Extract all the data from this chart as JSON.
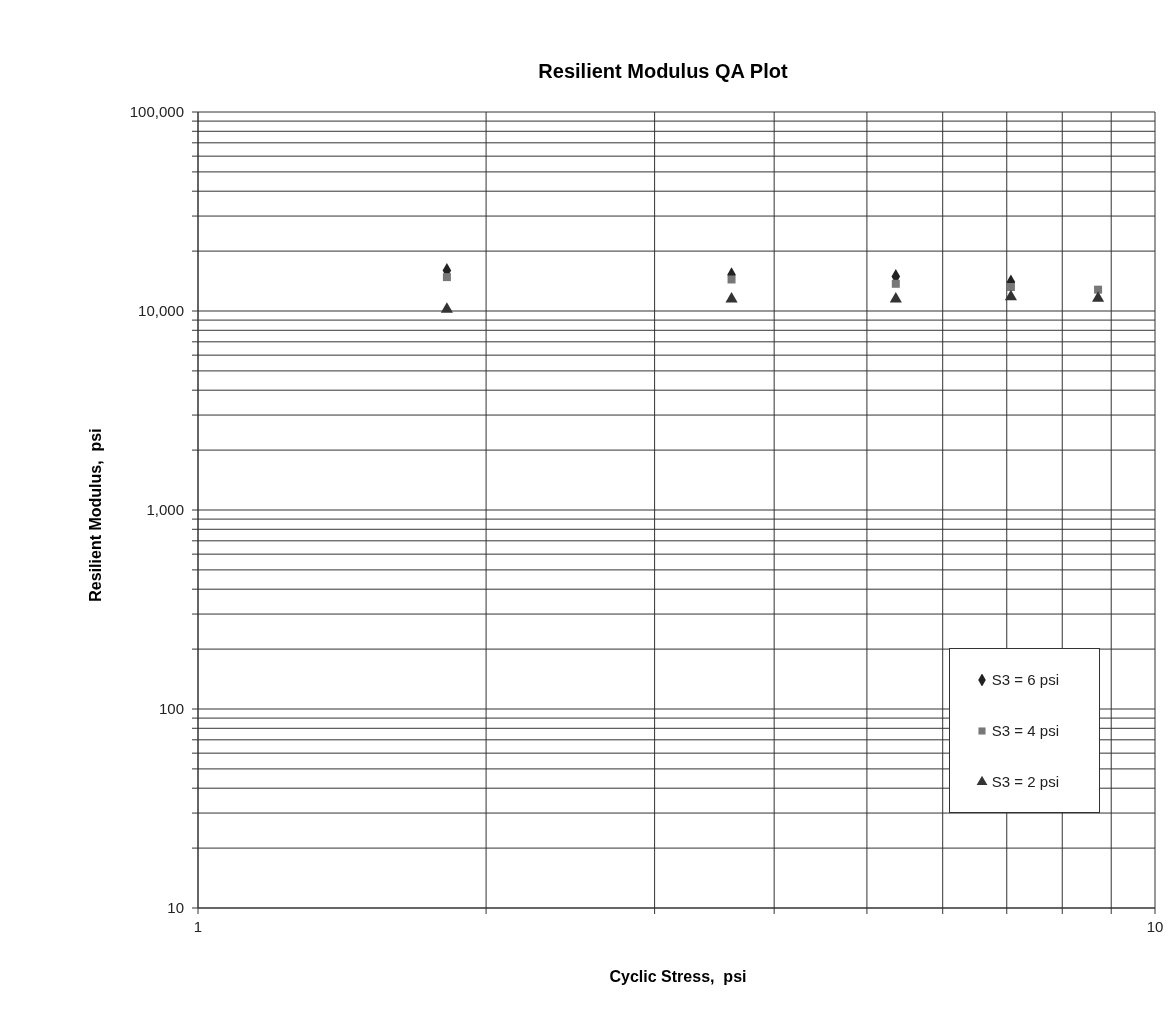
{
  "chart_data": {
    "type": "scatter",
    "title": "Resilient Modulus QA Plot",
    "xlabel": "Cyclic Stress,  psi",
    "ylabel": "Resilient Modulus,  psi",
    "x": [
      1.82,
      3.61,
      5.36,
      7.07,
      8.72
    ],
    "series": [
      {
        "name": "S3  = 6 psi",
        "color": "#222222",
        "marker": "diamond",
        "values": [
          16000,
          15200,
          14900,
          14000,
          null
        ]
      },
      {
        "name": "S3  = 4 psi",
        "color": "#777777",
        "marker": "square",
        "values": [
          14800,
          14400,
          13700,
          13200,
          12800
        ]
      },
      {
        "name": "S3  = 2 psi",
        "color": "#333333",
        "marker": "triangle",
        "values": [
          10200,
          11500,
          11500,
          11800,
          11600
        ]
      }
    ],
    "log": "xy",
    "xlim": [
      1,
      10
    ],
    "ylim": [
      10,
      100000
    ],
    "xticks": [
      1,
      {
        "value": 2,
        "label": null
      },
      {
        "value": 3,
        "label": null
      },
      {
        "value": 4,
        "label": null
      },
      {
        "value": 5,
        "label": null
      },
      {
        "value": 6,
        "label": null
      },
      {
        "value": 7,
        "label": null
      },
      {
        "value": 8,
        "label": null
      },
      {
        "value": 9,
        "label": null
      },
      10
    ],
    "yticks": [
      10,
      {
        "value": 20,
        "label": null
      },
      {
        "value": 30,
        "label": null
      },
      {
        "value": 40,
        "label": null
      },
      {
        "value": 50,
        "label": null
      },
      {
        "value": 60,
        "label": null
      },
      {
        "value": 70,
        "label": null
      },
      {
        "value": 80,
        "label": null
      },
      {
        "value": 90,
        "label": null
      },
      100,
      {
        "value": 200,
        "label": null
      },
      {
        "value": 300,
        "label": null
      },
      {
        "value": 400,
        "label": null
      },
      {
        "value": 500,
        "label": null
      },
      {
        "value": 600,
        "label": null
      },
      {
        "value": 700,
        "label": null
      },
      {
        "value": 800,
        "label": null
      },
      {
        "value": 900,
        "label": null
      },
      {
        "value": 1000,
        "label": "1,000"
      },
      {
        "value": 2000,
        "label": null
      },
      {
        "value": 3000,
        "label": null
      },
      {
        "value": 4000,
        "label": null
      },
      {
        "value": 5000,
        "label": null
      },
      {
        "value": 6000,
        "label": null
      },
      {
        "value": 7000,
        "label": null
      },
      {
        "value": 8000,
        "label": null
      },
      {
        "value": 9000,
        "label": null
      },
      {
        "value": 10000,
        "label": "10,000"
      },
      {
        "value": 20000,
        "label": null
      },
      {
        "value": 30000,
        "label": null
      },
      {
        "value": 40000,
        "label": null
      },
      {
        "value": 50000,
        "label": null
      },
      {
        "value": 60000,
        "label": null
      },
      {
        "value": 70000,
        "label": null
      },
      {
        "value": 80000,
        "label": null
      },
      {
        "value": 90000,
        "label": null
      },
      {
        "value": 100000,
        "label": "100,000"
      }
    ],
    "grid": true,
    "legend": "bottom right"
  }
}
